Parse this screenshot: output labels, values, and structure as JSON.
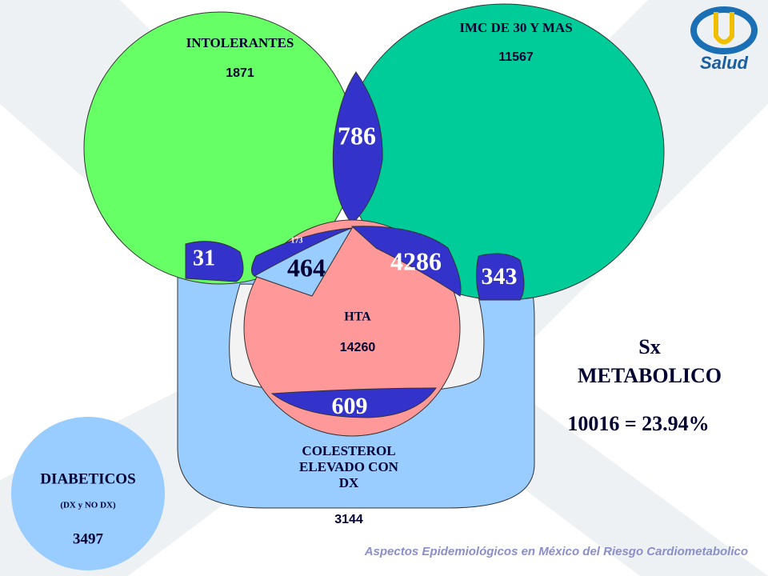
{
  "sets": {
    "intolerantes": {
      "label": "INTOLERANTES",
      "count": 1871
    },
    "imc": {
      "label": "IMC DE 30 Y MAS",
      "count": 11567
    },
    "hta": {
      "label": "HTA",
      "count": 14260
    },
    "colesterol": {
      "label": "COLESTEROL ELEVADO CON DX",
      "count": 3144
    },
    "diabeticos": {
      "label": "DIABETICOS",
      "sublabel": "(DX y NO DX)",
      "count": 3497
    }
  },
  "intersections": {
    "intolerantes_imc": 786,
    "intolerantes_colesterol": 31,
    "center_small": 173,
    "intolerantes_hta": 464,
    "imc_hta": 4286,
    "imc_colesterol": 343,
    "hta_colesterol": 609
  },
  "metabolic": {
    "title": "Sx METABOLICO",
    "total": "10016 = 23.94%"
  },
  "logo": "Salud",
  "footer": "Aspectos Epidemiológicos en México del Riesgo Cardiometabolico"
}
